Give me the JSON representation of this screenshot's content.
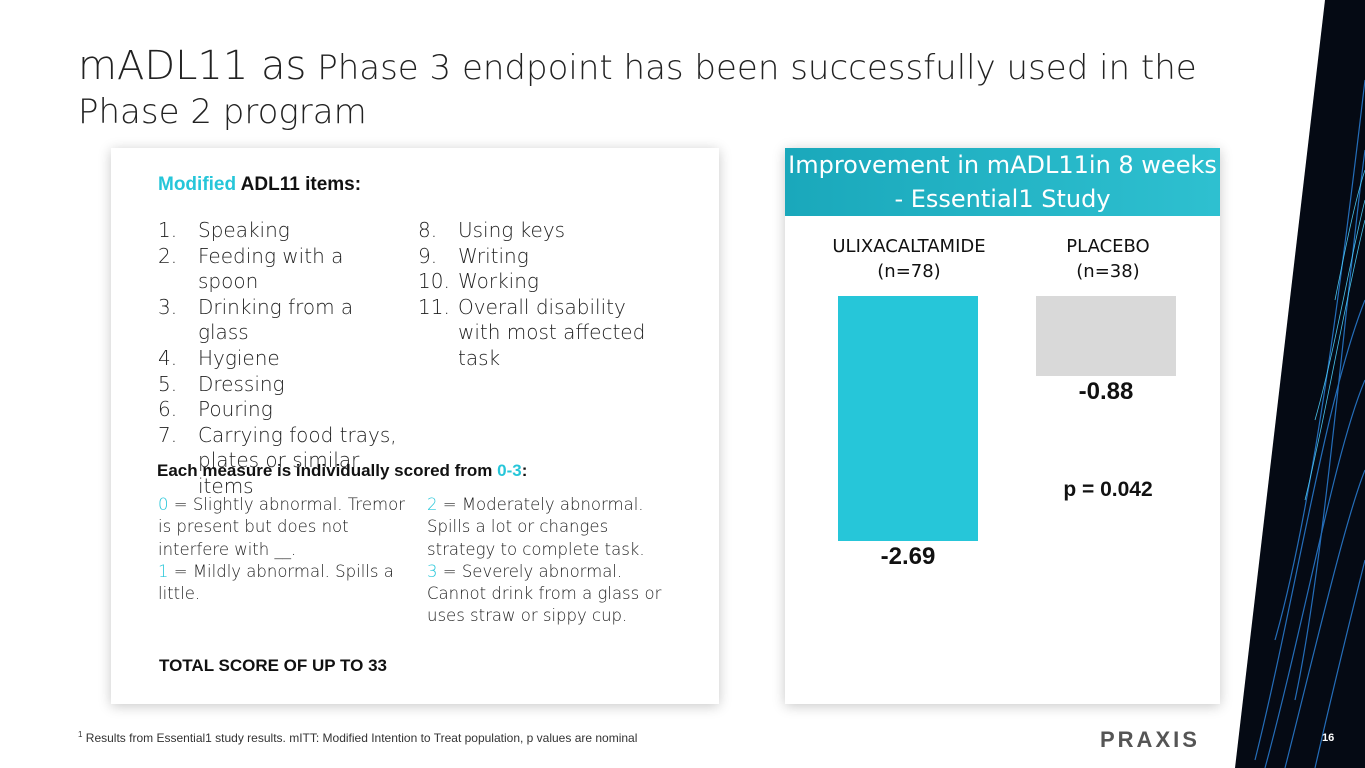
{
  "title": {
    "part1": "mADL11 as",
    "part2": " Phase 3 endpoint has been successfully used in the Phase 2 program"
  },
  "left_card": {
    "heading_accent": "Modified",
    "heading_rest": " ADL11 items:",
    "items_col1": [
      {
        "num": "1.",
        "text": "Speaking"
      },
      {
        "num": "2.",
        "text": "Feeding with a spoon"
      },
      {
        "num": "3.",
        "text": "Drinking from a glass"
      },
      {
        "num": "4.",
        "text": "Hygiene"
      },
      {
        "num": "5.",
        "text": "Dressing"
      },
      {
        "num": "6.",
        "text": "Pouring"
      },
      {
        "num": "7.",
        "text": "Carrying food trays, plates or similar items"
      }
    ],
    "items_col2": [
      {
        "num": "8.",
        "text": "Using keys"
      },
      {
        "num": "9.",
        "text": "Writing"
      },
      {
        "num": "10.",
        "text": "Working"
      },
      {
        "num": "11.",
        "text": "Overall disability with most affected task"
      }
    ],
    "score_heading": "Each measure is individually scored from ",
    "score_range": "0-3",
    "score_colon": ":",
    "scores_col1": [
      {
        "value": "0",
        "text": " = Slightly abnormal. Tremor is present but does not interfere with __."
      },
      {
        "value": "1",
        "text": " = Mildly abnormal. Spills a little."
      }
    ],
    "scores_col2": [
      {
        "value": "2",
        "text": " = Moderately abnormal. Spills a lot or changes strategy to complete task."
      },
      {
        "value": "3",
        "text": " = Severely abnormal. Cannot drink from a glass or uses straw or sippy cup."
      }
    ],
    "total": "TOTAL SCORE OF UP TO 33"
  },
  "chart_data": {
    "type": "bar",
    "title": "Improvement in mADL11in 8 weeks - Essential1 Study",
    "categories": [
      "ULIXACALTAMIDE (n=78)",
      "PLACEBO (n=38)"
    ],
    "category_lines": [
      [
        "ULIXACALTAMIDE",
        "(n=78)"
      ],
      [
        "PLACEBO",
        "(n=38)"
      ]
    ],
    "values": [
      -2.69,
      -0.88
    ],
    "value_labels": [
      "-2.69",
      "-0.88"
    ],
    "colors": [
      "#26c6d9",
      "#d9d9d9"
    ],
    "annotation": "p = 0.042",
    "ylim": [
      -2.69,
      0
    ]
  },
  "footnote": {
    "sup": "1",
    "text": " Results from Essential1 study results. mITT: Modified Intention to Treat population, p values are nominal"
  },
  "logo": "PRAXIS",
  "page_number": "16"
}
